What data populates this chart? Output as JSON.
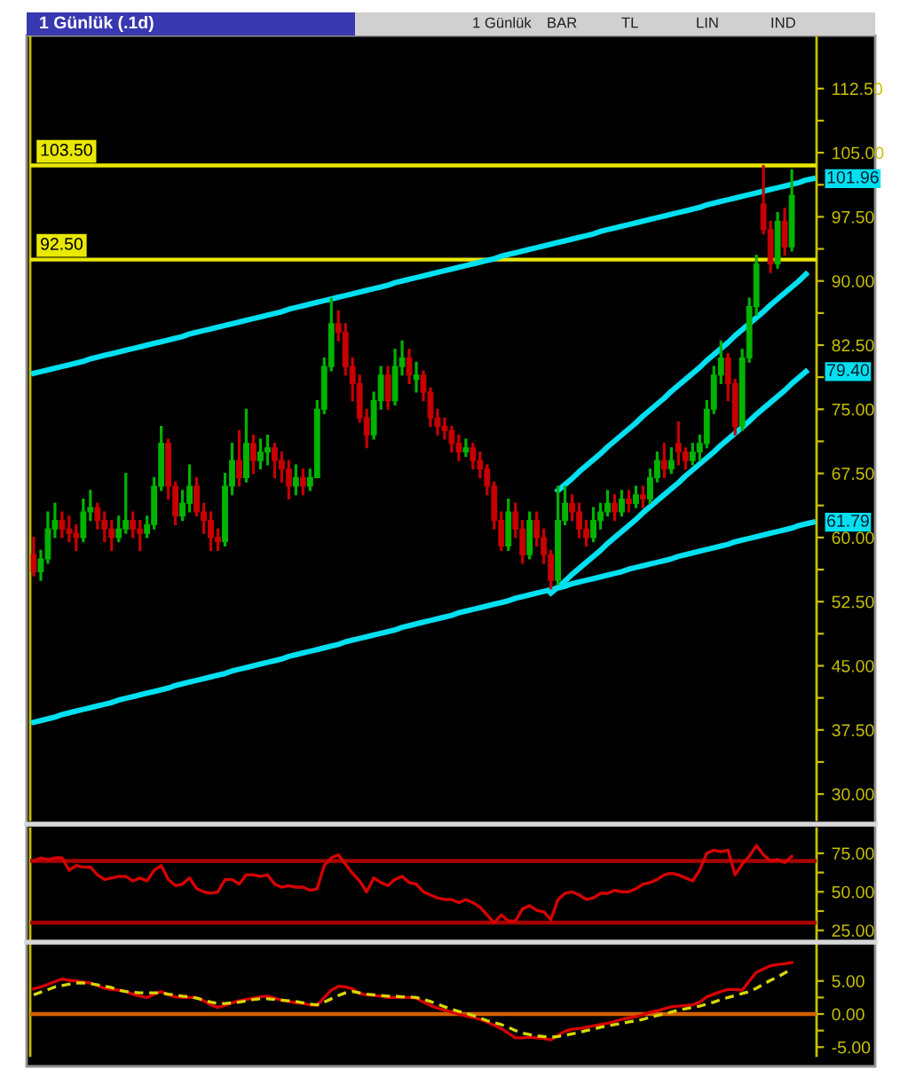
{
  "chart_data": [
    {
      "type": "candlestick",
      "title": "1 Günlük (.1d)",
      "tick_labels": "y",
      "annotations": [
        "1 Günlük",
        "BAR",
        "TL",
        "LIN",
        "IND"
      ],
      "categories": [
        null,
        null,
        null,
        null,
        null,
        null,
        null,
        null,
        null,
        null,
        null,
        null,
        null,
        null,
        null,
        null,
        null,
        null,
        null,
        null,
        null,
        null,
        null,
        null,
        null,
        null,
        null,
        null,
        null,
        null,
        null,
        null,
        null,
        null,
        null,
        null,
        null,
        null,
        null,
        null,
        null,
        null,
        null,
        null,
        null,
        null,
        null,
        null,
        null,
        null,
        null,
        null,
        null,
        null,
        null,
        null,
        null,
        null,
        null,
        null,
        null,
        null,
        null,
        null,
        null,
        null,
        null,
        null,
        null,
        null,
        null,
        null,
        null,
        null,
        null,
        null,
        null,
        null,
        null,
        null,
        null,
        null,
        null,
        null,
        null,
        null,
        null,
        null,
        null,
        null,
        null,
        null,
        null,
        null,
        null,
        null,
        null,
        null,
        null,
        null,
        null,
        null,
        null,
        null,
        null,
        null,
        null,
        null,
        null,
        null,
        null
      ],
      "ohlc": [
        [
          58,
          60,
          55.5,
          56
        ],
        [
          56,
          58.5,
          55,
          57.5
        ],
        [
          57.5,
          63,
          57,
          61
        ],
        [
          61,
          64,
          60,
          62
        ],
        [
          62,
          63,
          60,
          61
        ],
        [
          61,
          62.5,
          59.5,
          60.5
        ],
        [
          60.5,
          61.5,
          58.5,
          60
        ],
        [
          60,
          64.5,
          59.5,
          63
        ],
        [
          63,
          65.5,
          62,
          63.5
        ],
        [
          63.5,
          64,
          61,
          62
        ],
        [
          62,
          63,
          59.5,
          61
        ],
        [
          61,
          62,
          58.5,
          60
        ],
        [
          60,
          62.5,
          59.5,
          61
        ],
        [
          61,
          67.5,
          60.5,
          62
        ],
        [
          62,
          63,
          60,
          61
        ],
        [
          61,
          62,
          58.5,
          60.5
        ],
        [
          60.5,
          62.5,
          60,
          61.5
        ],
        [
          61.5,
          67,
          61,
          66
        ],
        [
          66,
          73,
          65.5,
          71
        ],
        [
          71,
          71.5,
          64.5,
          66
        ],
        [
          66,
          66.5,
          61.5,
          62.5
        ],
        [
          62.5,
          65.5,
          62,
          64
        ],
        [
          64,
          68.5,
          63,
          66
        ],
        [
          66,
          67,
          62.5,
          63
        ],
        [
          63,
          64,
          60.5,
          62
        ],
        [
          62,
          63,
          58.5,
          60
        ],
        [
          60,
          61,
          58.5,
          59.5
        ],
        [
          59.5,
          67.5,
          59,
          66
        ],
        [
          66,
          71,
          65,
          69
        ],
        [
          69,
          72.5,
          66,
          67
        ],
        [
          67,
          75,
          66.5,
          71
        ],
        [
          71,
          72,
          67.5,
          69
        ],
        [
          69,
          71.5,
          68,
          70
        ],
        [
          70,
          72,
          68.5,
          70.5
        ],
        [
          70.5,
          71,
          67,
          69
        ],
        [
          69,
          70,
          66.5,
          68
        ],
        [
          68,
          69,
          64.5,
          66
        ],
        [
          66,
          68.5,
          65,
          67
        ],
        [
          67,
          68,
          65,
          66
        ],
        [
          66,
          68,
          65.5,
          67
        ],
        [
          67,
          76,
          67,
          75
        ],
        [
          75,
          81,
          74.5,
          80
        ],
        [
          80,
          88,
          79.5,
          85
        ],
        [
          85,
          86.5,
          83,
          84
        ],
        [
          84,
          85,
          79,
          80
        ],
        [
          80,
          81,
          76,
          78
        ],
        [
          78,
          79,
          73.5,
          74
        ],
        [
          74,
          75,
          70.5,
          72
        ],
        [
          72,
          77,
          71.5,
          76
        ],
        [
          76,
          80,
          75,
          79
        ],
        [
          79,
          80,
          75,
          76
        ],
        [
          76,
          82,
          75.5,
          80
        ],
        [
          80,
          83,
          79,
          81
        ],
        [
          81,
          82,
          78,
          79
        ],
        [
          78.5,
          80.5,
          77,
          79
        ],
        [
          79,
          79.5,
          76,
          77
        ],
        [
          77,
          77.5,
          73,
          74
        ],
        [
          74,
          75,
          72,
          73
        ],
        [
          73,
          74,
          71.5,
          72.5
        ],
        [
          72.5,
          73,
          70,
          71
        ],
        [
          71,
          72,
          69,
          70
        ],
        [
          70,
          71.5,
          69.5,
          70.5
        ],
        [
          70.5,
          71,
          68,
          69
        ],
        [
          69,
          70,
          67,
          68
        ],
        [
          68,
          68.5,
          65,
          66
        ],
        [
          66,
          66.5,
          61,
          62
        ],
        [
          62,
          63,
          58.5,
          59
        ],
        [
          59,
          64.5,
          58.5,
          63
        ],
        [
          63,
          64,
          60,
          61
        ],
        [
          61,
          62,
          57,
          58
        ],
        [
          58,
          63,
          57.5,
          62
        ],
        [
          62,
          63,
          59,
          60
        ],
        [
          60,
          61,
          57,
          58
        ],
        [
          58,
          58.5,
          54,
          55
        ],
        [
          55,
          66,
          54.5,
          62
        ],
        [
          62,
          66,
          61.5,
          64
        ],
        [
          64,
          65,
          62,
          63
        ],
        [
          63,
          64,
          60,
          61
        ],
        [
          61,
          62,
          59,
          60
        ],
        [
          60,
          63.5,
          59.5,
          62
        ],
        [
          62,
          64,
          61,
          63
        ],
        [
          63,
          65.5,
          62.5,
          64
        ],
        [
          64,
          65,
          62,
          63
        ],
        [
          63,
          65.5,
          62.5,
          64.5
        ],
        [
          64.5,
          65.5,
          63,
          64
        ],
        [
          64,
          66,
          63.5,
          65
        ],
        [
          65,
          66,
          63.5,
          64.5
        ],
        [
          64.5,
          68,
          64,
          67
        ],
        [
          67,
          70,
          66.5,
          69
        ],
        [
          69,
          71,
          67,
          68
        ],
        [
          68,
          70.5,
          67.5,
          69
        ],
        [
          71,
          73.5,
          68.5,
          70
        ],
        [
          70,
          70.5,
          68,
          69
        ],
        [
          69,
          71,
          68.5,
          70
        ],
        [
          70,
          72,
          69,
          71
        ],
        [
          71,
          76,
          70.5,
          75
        ],
        [
          75,
          80,
          74.5,
          79
        ],
        [
          79,
          83,
          78,
          81
        ],
        [
          81,
          81.5,
          76,
          78
        ],
        [
          78,
          78.5,
          72,
          73
        ],
        [
          73,
          82,
          72.5,
          81
        ],
        [
          81,
          88,
          80.5,
          87
        ],
        [
          87,
          93,
          86,
          92
        ],
        [
          99,
          103.5,
          95.5,
          96
        ],
        [
          96,
          97,
          91,
          92
        ],
        [
          92,
          98,
          91.5,
          97
        ],
        [
          97,
          98.5,
          93,
          94
        ],
        [
          94,
          103,
          93.5,
          100
        ],
        null,
        null,
        null
      ],
      "colors": [
        "#c80000",
        "#00b400",
        "#00b400",
        "#00b400",
        "#c80000",
        "#c80000",
        "#c80000",
        "#00b400",
        "#00b400",
        "#c80000",
        "#c80000",
        "#c80000",
        "#00b400",
        "#00b400",
        "#c80000",
        "#c80000",
        "#00b400",
        "#00b400",
        "#00b400",
        "#c80000",
        "#c80000",
        "#00b400",
        "#00b400",
        "#c80000",
        "#c80000",
        "#c80000",
        "#c80000",
        "#00b400",
        "#00b400",
        "#c80000",
        "#00b400",
        "#c80000",
        "#00b400",
        "#00b400",
        "#c80000",
        "#c80000",
        "#c80000",
        "#00b400",
        "#c80000",
        "#00b400",
        "#00b400",
        "#00b400",
        "#00b400",
        "#c80000",
        "#c80000",
        "#c80000",
        "#c80000",
        "#c80000",
        "#00b400",
        "#00b400",
        "#c80000",
        "#00b400",
        "#00b400",
        "#c80000",
        "#00b400",
        "#c80000",
        "#c80000",
        "#c80000",
        "#c80000",
        "#c80000",
        "#c80000",
        "#00b400",
        "#c80000",
        "#c80000",
        "#c80000",
        "#c80000",
        "#c80000",
        "#00b400",
        "#c80000",
        "#c80000",
        "#00b400",
        "#c80000",
        "#c80000",
        "#c80000",
        "#00b400",
        "#00b400",
        "#c80000",
        "#c80000",
        "#c80000",
        "#00b400",
        "#00b400",
        "#00b400",
        "#c80000",
        "#00b400",
        "#c80000",
        "#00b400",
        "#c80000",
        "#00b400",
        "#00b400",
        "#c80000",
        "#00b400",
        "#c80000",
        "#c80000",
        "#00b400",
        "#00b400",
        "#00b400",
        "#00b400",
        "#00b400",
        "#c80000",
        "#c80000",
        "#00b400",
        "#00b400",
        "#00b400",
        "#c80000",
        "#c80000",
        "#00b400",
        "#c80000",
        "#00b400",
        null,
        null,
        null
      ],
      "series": [
        {
          "type": "line",
          "color": "#00e0f0",
          "values": [
            79.2,
            79.4,
            79.6,
            79.8,
            80.0,
            80.2,
            80.4,
            80.6,
            80.9,
            81.1,
            81.3,
            81.5,
            81.7,
            81.9,
            82.1,
            82.3,
            82.5,
            82.7,
            82.9,
            83.1,
            83.3,
            83.5,
            83.8,
            84.0,
            84.2,
            84.4,
            84.6,
            84.8,
            85.0,
            85.2,
            85.4,
            85.6,
            85.8,
            86.0,
            86.2,
            86.4,
            86.7,
            86.9,
            87.1,
            87.3,
            87.5,
            87.7,
            87.9,
            88.1,
            88.3,
            88.5,
            88.7,
            88.9,
            89.1,
            89.3,
            89.5,
            89.8,
            90.0,
            90.2,
            90.4,
            90.6,
            90.8,
            91.0,
            91.2,
            91.4,
            91.6,
            91.8,
            92.0,
            92.2,
            92.4,
            92.6,
            92.9,
            93.1,
            93.3,
            93.5,
            93.7,
            93.9,
            94.1,
            94.3,
            94.5,
            94.7,
            94.9,
            95.1,
            95.3,
            95.5,
            95.8,
            96.0,
            96.2,
            96.4,
            96.6,
            96.8,
            97.0,
            97.2,
            97.4,
            97.6,
            97.8,
            98.0,
            98.2,
            98.4,
            98.6,
            98.9,
            99.1,
            99.3,
            99.5,
            99.7,
            99.9,
            100.1,
            100.3,
            100.5,
            100.7,
            100.9,
            101.1,
            101.3,
            101.5,
            101.8,
            101.96
          ],
          "value_labels": [
            null,
            null,
            null,
            null,
            null,
            null,
            null,
            null,
            null,
            null,
            null,
            null,
            null,
            null,
            null,
            null,
            null,
            null,
            null,
            null,
            null,
            null,
            null,
            null,
            null,
            null,
            null,
            null,
            null,
            null,
            null,
            null,
            null,
            null,
            null,
            null,
            null,
            null,
            null,
            null,
            null,
            null,
            null,
            null,
            null,
            null,
            null,
            null,
            null,
            null,
            null,
            null,
            null,
            null,
            null,
            null,
            null,
            null,
            null,
            null,
            null,
            null,
            null,
            null,
            null,
            null,
            null,
            null,
            null,
            null,
            null,
            null,
            null,
            null,
            null,
            null,
            null,
            null,
            null,
            null,
            null,
            null,
            null,
            null,
            null,
            null,
            null,
            null,
            null,
            null,
            null,
            null,
            null,
            null,
            null,
            null,
            null,
            null,
            null,
            null,
            null,
            null,
            null,
            null,
            null,
            null,
            null,
            null,
            null,
            null,
            "101.96"
          ]
        },
        {
          "type": "line",
          "color": "#00e0f0",
          "values": [
            38.4,
            38.6,
            38.8,
            39.0,
            39.3,
            39.5,
            39.7,
            39.9,
            40.1,
            40.3,
            40.5,
            40.7,
            41.0,
            41.2,
            41.4,
            41.6,
            41.8,
            42.0,
            42.2,
            42.4,
            42.7,
            42.9,
            43.1,
            43.3,
            43.5,
            43.7,
            43.9,
            44.1,
            44.4,
            44.6,
            44.8,
            45.0,
            45.2,
            45.4,
            45.6,
            45.8,
            46.1,
            46.3,
            46.5,
            46.7,
            46.9,
            47.1,
            47.3,
            47.5,
            47.8,
            48.0,
            48.2,
            48.4,
            48.6,
            48.8,
            49.0,
            49.2,
            49.5,
            49.7,
            49.9,
            50.1,
            50.3,
            50.5,
            50.7,
            50.9,
            51.2,
            51.4,
            51.6,
            51.8,
            52.0,
            52.2,
            52.4,
            52.6,
            52.9,
            53.1,
            53.3,
            53.5,
            53.7,
            53.9,
            54.1,
            54.3,
            54.6,
            54.8,
            55.0,
            55.2,
            55.4,
            55.6,
            55.8,
            56.0,
            56.3,
            56.5,
            56.7,
            56.9,
            57.1,
            57.3,
            57.5,
            57.8,
            58.0,
            58.2,
            58.4,
            58.6,
            58.8,
            59.0,
            59.2,
            59.5,
            59.7,
            59.9,
            60.1,
            60.3,
            60.5,
            60.7,
            60.9,
            61.1,
            61.4,
            61.6,
            61.79
          ],
          "value_labels": [
            null,
            null,
            null,
            null,
            null,
            null,
            null,
            null,
            null,
            null,
            null,
            null,
            null,
            null,
            null,
            null,
            null,
            null,
            null,
            null,
            null,
            null,
            null,
            null,
            null,
            null,
            null,
            null,
            null,
            null,
            null,
            null,
            null,
            null,
            null,
            null,
            null,
            null,
            null,
            null,
            null,
            null,
            null,
            null,
            null,
            null,
            null,
            null,
            null,
            null,
            null,
            null,
            null,
            null,
            null,
            null,
            null,
            null,
            null,
            null,
            null,
            null,
            null,
            null,
            null,
            null,
            null,
            null,
            null,
            null,
            null,
            null,
            null,
            null,
            null,
            null,
            null,
            null,
            null,
            null,
            null,
            null,
            null,
            null,
            null,
            null,
            null,
            null,
            null,
            null,
            null,
            null,
            null,
            null,
            null,
            null,
            null,
            null,
            null,
            null,
            null,
            null,
            null,
            null,
            null,
            null,
            null,
            null,
            null,
            null,
            "61.79"
          ]
        },
        {
          "type": "line",
          "color": "#00e0f0",
          "values": [
            null,
            null,
            null,
            null,
            null,
            null,
            null,
            null,
            null,
            null,
            null,
            null,
            null,
            null,
            null,
            null,
            null,
            null,
            null,
            null,
            null,
            null,
            null,
            null,
            null,
            null,
            null,
            null,
            null,
            null,
            null,
            null,
            null,
            null,
            null,
            null,
            null,
            null,
            null,
            null,
            null,
            null,
            null,
            null,
            null,
            null,
            null,
            null,
            null,
            null,
            null,
            null,
            null,
            null,
            null,
            null,
            null,
            null,
            null,
            null,
            null,
            null,
            null,
            null,
            null,
            null,
            null,
            null,
            null,
            null,
            null,
            null,
            null,
            null,
            65.5,
            66.2,
            66.9,
            67.7,
            68.4,
            69.1,
            69.8,
            70.6,
            71.3,
            72.0,
            72.7,
            73.4,
            74.2,
            74.9,
            75.6,
            76.3,
            77.1,
            77.8,
            78.5,
            79.2,
            79.9,
            80.7,
            81.4,
            82.1,
            82.8,
            83.6,
            84.3,
            85.0,
            85.7,
            86.4,
            87.2,
            87.9,
            88.6,
            89.3,
            90.0,
            90.8,
            null
          ]
        },
        {
          "type": "line",
          "color": "#00e0f0",
          "values": [
            null,
            null,
            null,
            null,
            null,
            null,
            null,
            null,
            null,
            null,
            null,
            null,
            null,
            null,
            null,
            null,
            null,
            null,
            null,
            null,
            null,
            null,
            null,
            null,
            null,
            null,
            null,
            null,
            null,
            null,
            null,
            null,
            null,
            null,
            null,
            null,
            null,
            null,
            null,
            null,
            null,
            null,
            null,
            null,
            null,
            null,
            null,
            null,
            null,
            null,
            null,
            null,
            null,
            null,
            null,
            null,
            null,
            null,
            null,
            null,
            null,
            null,
            null,
            null,
            null,
            null,
            null,
            null,
            null,
            null,
            null,
            null,
            null,
            53.5,
            54.2,
            54.9,
            55.7,
            56.4,
            57.1,
            57.8,
            58.5,
            59.3,
            60.0,
            60.7,
            61.4,
            62.1,
            62.9,
            63.6,
            64.3,
            65.0,
            65.7,
            66.4,
            67.2,
            67.9,
            68.6,
            69.3,
            70.0,
            70.8,
            71.5,
            72.2,
            72.9,
            73.6,
            74.4,
            75.1,
            75.8,
            76.5,
            77.2,
            78.0,
            78.7,
            79.4,
            null
          ],
          "value_labels": [
            null,
            null,
            null,
            null,
            null,
            null,
            null,
            null,
            null,
            null,
            null,
            null,
            null,
            null,
            null,
            null,
            null,
            null,
            null,
            null,
            null,
            null,
            null,
            null,
            null,
            null,
            null,
            null,
            null,
            null,
            null,
            null,
            null,
            null,
            null,
            null,
            null,
            null,
            null,
            null,
            null,
            null,
            null,
            null,
            null,
            null,
            null,
            null,
            null,
            null,
            null,
            null,
            null,
            null,
            null,
            null,
            null,
            null,
            null,
            null,
            null,
            null,
            null,
            null,
            null,
            null,
            null,
            null,
            null,
            null,
            null,
            null,
            null,
            null,
            null,
            null,
            null,
            null,
            null,
            null,
            null,
            null,
            null,
            null,
            null,
            null,
            null,
            null,
            null,
            null,
            null,
            null,
            null,
            null,
            null,
            null,
            null,
            null,
            null,
            null,
            null,
            null,
            null,
            null,
            null,
            null,
            null,
            null,
            null,
            "79.40",
            null
          ]
        }
      ],
      "ylim": [
        27,
        118.5
      ],
      "yticks": [
        {
          "value": 30,
          "label": "30.00"
        },
        {
          "value": 33.75,
          "label": null
        },
        {
          "value": 37.5,
          "label": "37.50"
        },
        {
          "value": 41.25,
          "label": null
        },
        {
          "value": 45,
          "label": "45.00"
        },
        {
          "value": 48.75,
          "label": null
        },
        {
          "value": 52.5,
          "label": "52.50"
        },
        {
          "value": 56.25,
          "label": null
        },
        {
          "value": 60,
          "label": "60.00"
        },
        {
          "value": 63.75,
          "label": null
        },
        {
          "value": 67.5,
          "label": "67.50"
        },
        {
          "value": 71.25,
          "label": null
        },
        {
          "value": 75,
          "label": "75.00"
        },
        {
          "value": 78.75,
          "label": null
        },
        {
          "value": 82.5,
          "label": "82.50"
        },
        {
          "value": 86.25,
          "label": null
        },
        {
          "value": 90,
          "label": "90.00"
        },
        {
          "value": 93.75,
          "label": null
        },
        {
          "value": 97.5,
          "label": "97.50"
        },
        {
          "value": 101.25,
          "label": null
        },
        {
          "value": 105,
          "label": "105.00"
        },
        {
          "value": 108.75,
          "label": null
        },
        {
          "value": 112.5,
          "label": "112.50"
        }
      ],
      "ref_lines": [
        {
          "axis": "y",
          "value": 103.5,
          "label": "103.50",
          "color": "#e8e800"
        },
        {
          "axis": "y",
          "value": 92.5,
          "label": "92.50",
          "color": "#e8e800"
        }
      ]
    },
    {
      "type": "line",
      "tick_labels": "y",
      "categories": [
        null,
        null,
        null,
        null,
        null,
        null,
        null,
        null,
        null,
        null,
        null,
        null,
        null,
        null,
        null,
        null,
        null,
        null,
        null,
        null,
        null,
        null,
        null,
        null,
        null,
        null,
        null,
        null,
        null,
        null,
        null,
        null,
        null,
        null,
        null,
        null,
        null,
        null,
        null,
        null,
        null,
        null,
        null,
        null,
        null,
        null,
        null,
        null,
        null,
        null,
        null,
        null,
        null,
        null,
        null,
        null,
        null,
        null,
        null,
        null,
        null,
        null,
        null,
        null,
        null,
        null,
        null,
        null,
        null,
        null,
        null,
        null,
        null,
        null,
        null,
        null,
        null,
        null,
        null,
        null,
        null,
        null,
        null,
        null,
        null,
        null,
        null,
        null,
        null,
        null,
        null,
        null,
        null,
        null,
        null,
        null,
        null,
        null,
        null,
        null,
        null,
        null,
        null,
        null,
        null,
        null,
        null,
        null,
        null,
        null,
        null
      ],
      "series": [
        {
          "color": "#d80000",
          "values": [
            70,
            72,
            71,
            72,
            72,
            64,
            67,
            66,
            66,
            61,
            58,
            59,
            60,
            60,
            57,
            59,
            57,
            64,
            67,
            58,
            54,
            55,
            59,
            52,
            50,
            49,
            50,
            58,
            58,
            55,
            61,
            61,
            60,
            61,
            55,
            53,
            54,
            53,
            53,
            51,
            52,
            67,
            72,
            74,
            68,
            62,
            57,
            50,
            59,
            56,
            54,
            58,
            60,
            56,
            55,
            50,
            48,
            46,
            45,
            45,
            43,
            45,
            43,
            40,
            35,
            30,
            35,
            31,
            31,
            39,
            41,
            38,
            37,
            32,
            45,
            49,
            50,
            48,
            45,
            46,
            49,
            49,
            51,
            50,
            50,
            52,
            55,
            56,
            58,
            61,
            62,
            61,
            59,
            57,
            64,
            75,
            77,
            76,
            77,
            61,
            68,
            73,
            80,
            74,
            70,
            71,
            69,
            73,
            null,
            null,
            null
          ]
        }
      ],
      "ylim": [
        18.5,
        91
      ],
      "yticks": [
        {
          "value": 25,
          "label": "25.00"
        },
        {
          "value": 37.5,
          "label": null
        },
        {
          "value": 50,
          "label": "50.00"
        },
        {
          "value": 62.5,
          "label": null
        },
        {
          "value": 75,
          "label": "75.00"
        }
      ],
      "ref_lines": [
        {
          "axis": "y",
          "value": 70,
          "color": "#a80000"
        },
        {
          "axis": "y",
          "value": 30,
          "color": "#a80000"
        }
      ]
    },
    {
      "type": "line",
      "tick_labels": "y",
      "categories": [
        null,
        null,
        null,
        null,
        null,
        null,
        null,
        null,
        null,
        null,
        null,
        null,
        null,
        null,
        null,
        null,
        null,
        null,
        null,
        null,
        null,
        null,
        null,
        null,
        null,
        null,
        null,
        null,
        null,
        null,
        null,
        null,
        null,
        null,
        null,
        null,
        null,
        null,
        null,
        null,
        null,
        null,
        null,
        null,
        null,
        null,
        null,
        null,
        null,
        null,
        null,
        null,
        null,
        null,
        null,
        null,
        null,
        null,
        null,
        null,
        null,
        null,
        null,
        null,
        null,
        null,
        null,
        null,
        null,
        null,
        null,
        null,
        null,
        null,
        null,
        null,
        null,
        null,
        null,
        null,
        null,
        null,
        null,
        null,
        null,
        null,
        null,
        null,
        null,
        null,
        null,
        null,
        null,
        null,
        null,
        null,
        null,
        null,
        null,
        null,
        null,
        null,
        null,
        null,
        null,
        null,
        null,
        null,
        null,
        null,
        null
      ],
      "series": [
        {
          "color": "#d80000",
          "line_style": "solid",
          "values": [
            3.8,
            4.1,
            4.5,
            4.9,
            5.3,
            5.1,
            5.0,
            4.8,
            4.7,
            4.3,
            3.9,
            3.7,
            3.6,
            3.4,
            3.0,
            2.7,
            2.5,
            3.0,
            3.4,
            2.9,
            2.6,
            2.5,
            2.5,
            2.5,
            2.0,
            1.4,
            1.0,
            1.3,
            1.7,
            2.0,
            2.2,
            2.4,
            2.6,
            2.7,
            2.4,
            2.1,
            1.9,
            1.7,
            1.6,
            1.4,
            1.3,
            2.5,
            3.6,
            4.2,
            4.1,
            3.8,
            3.1,
            2.9,
            2.8,
            2.7,
            2.5,
            2.5,
            2.5,
            2.5,
            2.4,
            1.8,
            1.3,
            0.9,
            0.6,
            0.3,
            0.0,
            -0.3,
            -0.5,
            -0.8,
            -1.2,
            -1.7,
            -2.2,
            -2.9,
            -3.6,
            -3.6,
            -3.5,
            -3.6,
            -3.7,
            -3.9,
            -3.2,
            -2.6,
            -2.3,
            -2.2,
            -2.0,
            -1.8,
            -1.6,
            -1.4,
            -1.1,
            -0.8,
            -0.6,
            -0.4,
            -0.1,
            0.3,
            0.5,
            0.8,
            1.1,
            1.2,
            1.3,
            1.4,
            1.8,
            2.6,
            3.0,
            3.4,
            3.7,
            3.7,
            3.6,
            5.0,
            6.3,
            6.8,
            7.3,
            7.5,
            7.6,
            7.8,
            null,
            null,
            null
          ]
        },
        {
          "color": "#d8d800",
          "line_style": "dashed",
          "values": [
            2.9,
            3.3,
            3.7,
            4.1,
            4.3,
            4.5,
            4.7,
            4.7,
            4.6,
            4.4,
            4.2,
            4.0,
            3.6,
            3.4,
            3.3,
            3.2,
            3.2,
            3.2,
            3.2,
            3.0,
            2.9,
            2.7,
            2.6,
            2.4,
            2.1,
            1.8,
            1.6,
            1.6,
            1.7,
            1.8,
            2.0,
            2.2,
            2.3,
            2.3,
            2.2,
            2.1,
            2.0,
            1.9,
            1.7,
            1.5,
            1.4,
            1.8,
            2.3,
            2.8,
            3.2,
            3.4,
            3.2,
            3.0,
            2.9,
            2.8,
            2.7,
            2.7,
            2.6,
            2.6,
            2.5,
            2.2,
            1.9,
            1.5,
            1.1,
            0.7,
            0.4,
            0.1,
            -0.2,
            -0.6,
            -1.0,
            -1.3,
            -1.6,
            -2.0,
            -2.5,
            -2.9,
            -3.1,
            -3.3,
            -3.4,
            -3.5,
            -3.4,
            -3.2,
            -3.0,
            -2.8,
            -2.5,
            -2.3,
            -2.0,
            -1.8,
            -1.6,
            -1.4,
            -1.2,
            -1.0,
            -0.8,
            -0.5,
            -0.2,
            0.0,
            0.3,
            0.6,
            0.8,
            1.0,
            1.2,
            1.5,
            1.8,
            2.2,
            2.5,
            2.8,
            3.1,
            3.4,
            3.9,
            4.5,
            5.1,
            5.6,
            6.2,
            6.8,
            null,
            null,
            null
          ]
        }
      ],
      "ylim": [
        -6.3,
        10.6
      ],
      "yticks": [
        {
          "value": -5,
          "label": "-5.00"
        },
        {
          "value": -2.5,
          "label": null
        },
        {
          "value": 0,
          "label": "0.00"
        },
        {
          "value": 2.5,
          "label": null
        },
        {
          "value": 5,
          "label": "5.00"
        }
      ],
      "ref_lines": [
        {
          "axis": "y",
          "value": 0,
          "color": "#d06000"
        }
      ]
    }
  ]
}
